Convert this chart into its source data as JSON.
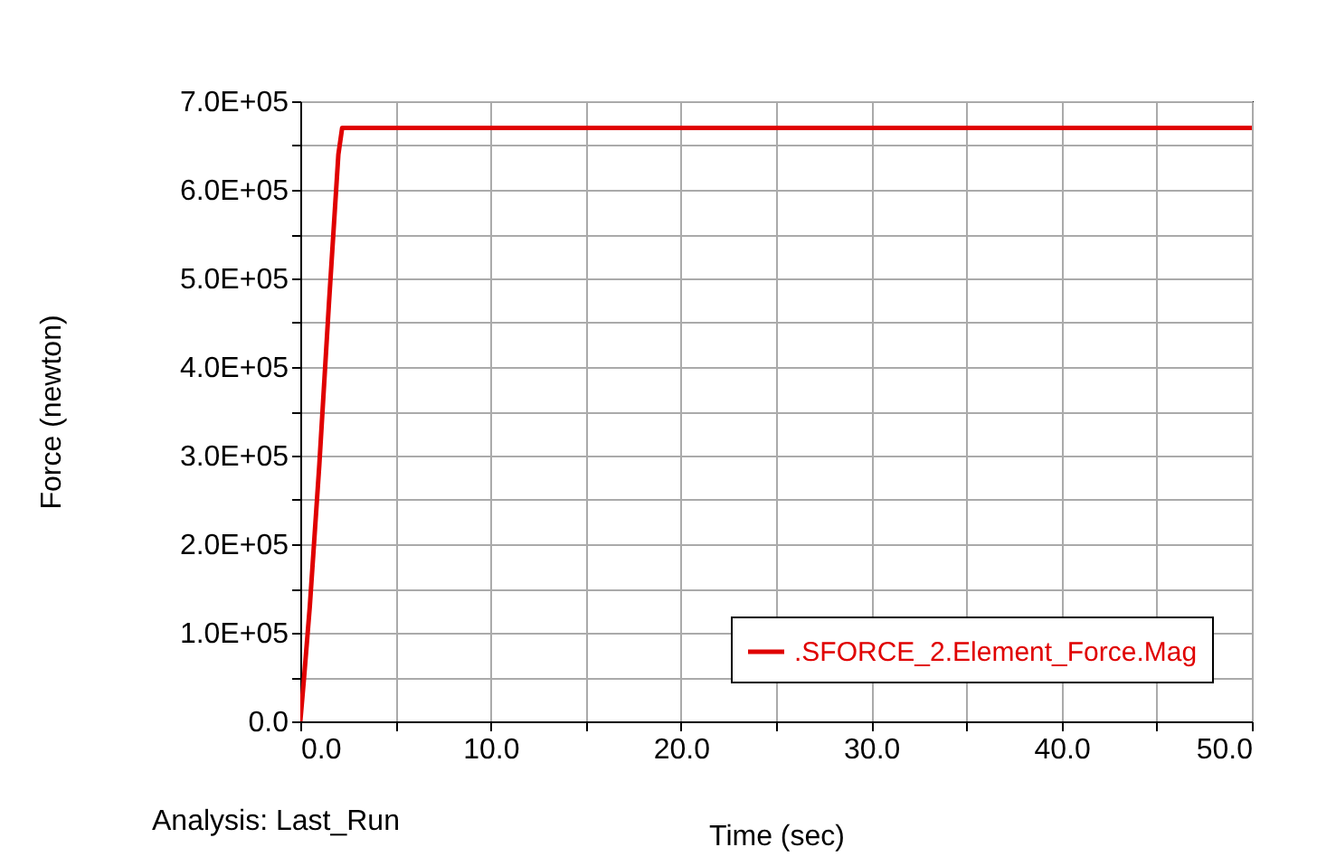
{
  "chart_data": {
    "type": "line",
    "xlabel": "Time (sec)",
    "ylabel": "Force (newton)",
    "annotations": [
      "Analysis:  Last_Run"
    ],
    "x": [
      0,
      0.2,
      0.5,
      1.0,
      1.5,
      2.0,
      2.2,
      50
    ],
    "series": [
      {
        "name": ".SFORCE_2.Element_Force.Mag",
        "color": "#e00000",
        "values": [
          0,
          50000,
          130000,
          290000,
          470000,
          640000,
          670000,
          670000
        ]
      }
    ],
    "xlim": [
      0,
      50
    ],
    "xticks": [
      {
        "value": 0,
        "label": "0.0"
      },
      {
        "value": 5,
        "label": null
      },
      {
        "value": 10,
        "label": "10.0"
      },
      {
        "value": 15,
        "label": null
      },
      {
        "value": 20,
        "label": "20.0"
      },
      {
        "value": 25,
        "label": null
      },
      {
        "value": 30,
        "label": "30.0"
      },
      {
        "value": 35,
        "label": null
      },
      {
        "value": 40,
        "label": "40.0"
      },
      {
        "value": 45,
        "label": null
      },
      {
        "value": 50,
        "label": "50.0"
      }
    ],
    "ylim": [
      0,
      700000
    ],
    "yticks": [
      {
        "value": 0,
        "label": "0.0"
      },
      {
        "value": 50000,
        "label": null
      },
      {
        "value": 100000,
        "label": "1.0E+05"
      },
      {
        "value": 150000,
        "label": null
      },
      {
        "value": 200000,
        "label": "2.0E+05"
      },
      {
        "value": 250000,
        "label": null
      },
      {
        "value": 300000,
        "label": "3.0E+05"
      },
      {
        "value": 350000,
        "label": null
      },
      {
        "value": 400000,
        "label": "4.0E+05"
      },
      {
        "value": 450000,
        "label": null
      },
      {
        "value": 500000,
        "label": "5.0E+05"
      },
      {
        "value": 550000,
        "label": null
      },
      {
        "value": 600000,
        "label": "6.0E+05"
      },
      {
        "value": 650000,
        "label": null
      },
      {
        "value": 700000,
        "label": "7.0E+05"
      }
    ],
    "grid": true,
    "legend": "bottom right",
    "marker": "none",
    "line_style": "solid"
  }
}
